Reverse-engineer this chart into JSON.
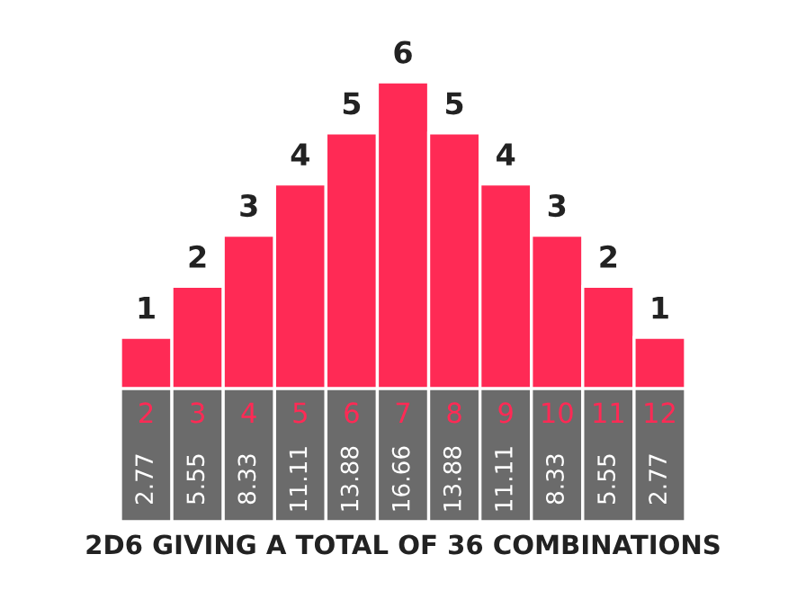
{
  "chart_data": {
    "type": "bar",
    "title": "2D6 GIVING A TOTAL OF 36 COMBINATIONS",
    "categories": [
      "2",
      "3",
      "4",
      "5",
      "6",
      "7",
      "8",
      "9",
      "10",
      "11",
      "12"
    ],
    "values": [
      1,
      2,
      3,
      4,
      5,
      6,
      5,
      4,
      3,
      2,
      1
    ],
    "color": "#ff2a55",
    "data_labels": true,
    "annotations": [
      "2.77",
      "5.55",
      "8.33",
      "11.11",
      "13.88",
      "16.66",
      "13.88",
      "11.11",
      "8.33",
      "5.55",
      "2.77"
    ]
  }
}
